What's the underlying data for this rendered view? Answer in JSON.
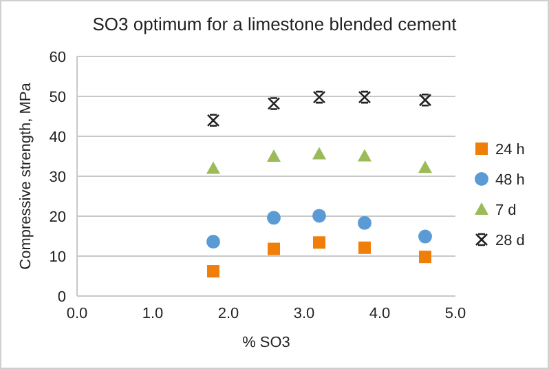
{
  "chart_data": {
    "type": "scatter",
    "title": "SO3 optimum for a limestone blended cement",
    "xlabel": "% SO3",
    "ylabel": "Compressive strength, MPa",
    "x": [
      1.8,
      2.6,
      3.2,
      3.8,
      4.6
    ],
    "series": [
      {
        "name": "24 h",
        "color": "#f07f09",
        "marker": "square",
        "values": [
          6.2,
          11.8,
          13.4,
          12.1,
          9.8
        ]
      },
      {
        "name": "48 h",
        "color": "#5b9bd5",
        "marker": "circle",
        "values": [
          13.6,
          19.6,
          20.1,
          18.3,
          14.9
        ]
      },
      {
        "name": "7 d",
        "color": "#9bbb59",
        "marker": "triangle",
        "values": [
          32,
          35,
          35.6,
          35.1,
          32.2
        ]
      },
      {
        "name": "28 d",
        "color": "#222222",
        "marker": "cross",
        "values": [
          44,
          48.2,
          49.8,
          49.8,
          49.1
        ]
      }
    ],
    "xlim": [
      0,
      5
    ],
    "xticks": [
      {
        "value": 0,
        "label": "0.0"
      },
      {
        "value": 1,
        "label": "1.0"
      },
      {
        "value": 2,
        "label": "2.0"
      },
      {
        "value": 3,
        "label": "3.0"
      },
      {
        "value": 4,
        "label": "4.0"
      },
      {
        "value": 5,
        "label": "5.0"
      }
    ],
    "ylim": [
      0,
      60
    ],
    "yticks": [
      0,
      10,
      20,
      30,
      40,
      50,
      60
    ],
    "grid": "y",
    "legend": "right"
  }
}
